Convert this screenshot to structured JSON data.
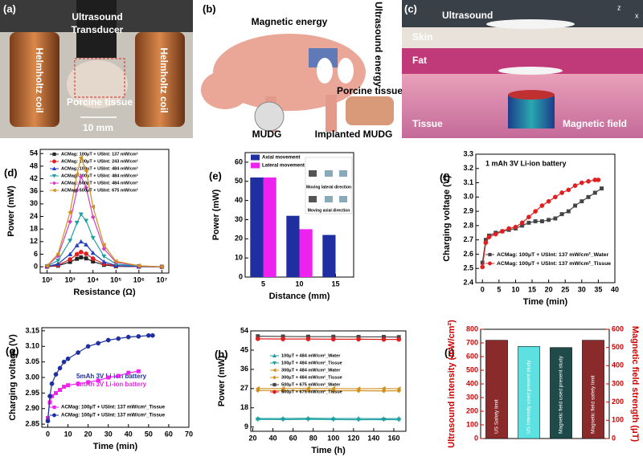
{
  "photos": [
    {
      "panel": "(a)",
      "labels": [
        "Ultrasound",
        "Transducer",
        "Helmholtz coil",
        "Helmholtz coil",
        "Porcine tissue",
        "10 mm"
      ]
    },
    {
      "panel": "(b)",
      "labels": [
        "Magnetic energy",
        "Ultrasound energy",
        "Porcine tissue",
        "MUDG",
        "Implanted MUDG"
      ]
    },
    {
      "panel": "(c)",
      "labels": [
        "Ultrasound",
        "Skin",
        "Fat",
        "Tissue",
        "Magnetic field",
        "z",
        "x"
      ]
    }
  ],
  "chart_data": [
    {
      "type": "line",
      "panel": "(d)",
      "xlabel": "Resistance (Ω)",
      "ylabel": "Power (mW)",
      "xscale": "log",
      "xlim": [
        50,
        20000000
      ],
      "xticks": [
        {
          "value": 100,
          "label": "10²"
        },
        {
          "value": 1000,
          "label": "10³"
        },
        {
          "value": 10000,
          "label": "10⁴"
        },
        {
          "value": 100000,
          "label": "10⁵"
        },
        {
          "value": 1000000,
          "label": "10⁶"
        },
        {
          "value": 10000000,
          "label": "10⁷"
        }
      ],
      "ylim": [
        -3,
        56
      ],
      "yticks": [
        0,
        6,
        12,
        18,
        24,
        30,
        36,
        42,
        48,
        54
      ],
      "legend": "upper right",
      "x": [
        100,
        300,
        1000,
        2000,
        3000,
        5000,
        10000,
        30000,
        100000,
        1000000,
        10000000
      ],
      "series": [
        {
          "name": "ACMag: 100μT + USInt: 137 mW/cm²",
          "color": "#222222",
          "marker": "square",
          "values": [
            0.05,
            0.5,
            2.3,
            3.8,
            4.5,
            4,
            2.5,
            0.9,
            0.2,
            0.05,
            0
          ]
        },
        {
          "name": "ACMag: 100μT + USInt: 243 mW/cm²",
          "color": "#e02020",
          "marker": "circle",
          "values": [
            0.1,
            0.8,
            3.5,
            6,
            7,
            6.2,
            3.9,
            1.4,
            0.4,
            0.1,
            0
          ]
        },
        {
          "name": "ACMag: 100μT + USInt: 484 mW/cm²",
          "color": "#2040c0",
          "marker": "triangle",
          "values": [
            0.1,
            1.4,
            6,
            10.2,
            12,
            10.6,
            6.6,
            2.4,
            0.6,
            0.1,
            0
          ]
        },
        {
          "name": "ACMag: 300μT + USInt: 484 mW/cm²",
          "color": "#20a0a0",
          "marker": "triangle-down",
          "values": [
            0.3,
            3,
            12.5,
            21,
            25,
            22,
            13.8,
            5,
            1.3,
            0.3,
            0
          ]
        },
        {
          "name": "ACMag: 500μT + USInt: 484 mW/cm²",
          "color": "#d040c0",
          "marker": "diamond",
          "values": [
            0.4,
            5.2,
            21.5,
            36.5,
            43,
            37.8,
            23.7,
            8.6,
            2.2,
            0.4,
            0
          ]
        },
        {
          "name": "ACMag: 500μT + USInt: 675 mW/cm²",
          "color": "#d09020",
          "marker": "triangle-left",
          "values": [
            0.5,
            6.2,
            26,
            44,
            52,
            45.8,
            28.6,
            10.4,
            2.6,
            0.5,
            0
          ]
        }
      ]
    },
    {
      "type": "bar",
      "panel": "(e)",
      "xlabel": "Distance (mm)",
      "ylabel": "Power (mW)",
      "categories": [
        "5",
        "10",
        "15"
      ],
      "ylim": [
        0,
        65
      ],
      "yticks": [
        0,
        10,
        20,
        30,
        40,
        50,
        60
      ],
      "legend": "upper left",
      "series": [
        {
          "name": "Axial movement",
          "color": "#1f2fa0",
          "values": [
            52,
            32,
            22
          ]
        },
        {
          "name": "Lateral movement",
          "color": "#ee22ee",
          "values": [
            52,
            25,
            null
          ]
        }
      ],
      "annotations": [
        {
          "text": "Moving lateral direction",
          "color": "#000000"
        },
        {
          "text": "Moving axial direction",
          "color": "#000000"
        }
      ]
    },
    {
      "type": "line",
      "panel": "(f)",
      "xlabel": "Time (min)",
      "ylabel": "Charging voltage (V)",
      "xlim": [
        -2,
        40
      ],
      "xticks": [
        0,
        5,
        10,
        15,
        20,
        25,
        30,
        35,
        40
      ],
      "ylim": [
        2.4,
        3.3
      ],
      "yticks": [
        2.4,
        2.5,
        2.6,
        2.7,
        2.8,
        2.9,
        {
          "value": 3,
          "label": "3.0"
        },
        3.1,
        3.2,
        3.3
      ],
      "legend": "lower right",
      "annotations": [
        {
          "text": "1 mAh 3V Li-ion battery",
          "color": "#000000"
        }
      ],
      "series": [
        {
          "name": "ACMag: 100μT + USInt: 137 mW/cm²_Water",
          "color": "#444444",
          "marker": "square",
          "x": [
            0,
            1,
            2,
            4,
            6,
            8,
            10,
            12,
            14,
            16,
            18,
            20,
            22,
            24,
            26,
            28,
            30,
            32,
            34,
            36
          ],
          "values": [
            2.54,
            2.7,
            2.73,
            2.75,
            2.76,
            2.77,
            2.78,
            2.8,
            2.82,
            2.83,
            2.83,
            2.84,
            2.85,
            2.88,
            2.9,
            2.94,
            2.97,
            3.0,
            3.03,
            3.06
          ]
        },
        {
          "name": "ACMag: 100μT + USInt: 137 mW/cm²_Tissue",
          "color": "#e02020",
          "marker": "circle",
          "x": [
            0,
            1,
            2,
            4,
            6,
            8,
            10,
            12,
            14,
            16,
            18,
            20,
            22,
            24,
            26,
            28,
            30,
            32,
            34,
            35
          ],
          "values": [
            2.51,
            2.68,
            2.72,
            2.74,
            2.76,
            2.78,
            2.79,
            2.82,
            2.86,
            2.9,
            2.94,
            2.97,
            3.0,
            3.03,
            3.05,
            3.08,
            3.1,
            3.11,
            3.12,
            3.12
          ]
        }
      ]
    },
    {
      "type": "line",
      "panel": "(g)",
      "xlabel": "Time (min)",
      "ylabel": "Charging voltage (V)",
      "xlim": [
        -3,
        70
      ],
      "xticks": [
        0,
        10,
        20,
        30,
        40,
        50,
        60,
        70
      ],
      "ylim": [
        2.84,
        3.16
      ],
      "yticks": [
        2.85,
        {
          "value": 2.9,
          "label": "2.90"
        },
        2.95,
        {
          "value": 3,
          "label": "3.00"
        },
        3.05,
        {
          "value": 3.1,
          "label": "3.10"
        },
        3.15
      ],
      "legend": "lower right",
      "annotations": [
        {
          "text": "5mAh 3V Li-ion battery",
          "color": "#1f2fa0"
        },
        {
          "text": "3mAh 3V Li-ion battery",
          "color": "#ee22ee"
        }
      ],
      "series": [
        {
          "name": "ACMag: 100μT + USInt: 137 mW/cm²_Tissue",
          "color": "#ee22ee",
          "marker": "square",
          "x": [
            0,
            1,
            2,
            4,
            6,
            8,
            10,
            15,
            20,
            25,
            30,
            35,
            40,
            45
          ],
          "values": [
            2.87,
            2.92,
            2.94,
            2.95,
            2.96,
            2.97,
            2.975,
            2.98,
            2.985,
            2.99,
            3.0,
            3.005,
            3.015,
            3.02
          ]
        },
        {
          "name": "ACMag: 100μT + USInt: 137 mW/cm²_Tissue",
          "color": "#1f2fa0",
          "marker": "circle",
          "x": [
            0,
            1,
            2,
            4,
            6,
            8,
            10,
            15,
            20,
            25,
            30,
            35,
            40,
            45,
            50,
            52
          ],
          "values": [
            2.86,
            2.94,
            2.98,
            3.01,
            3.03,
            3.05,
            3.06,
            3.08,
            3.1,
            3.11,
            3.12,
            3.125,
            3.13,
            3.132,
            3.135,
            3.135
          ]
        }
      ]
    },
    {
      "type": "line",
      "panel": "(h)",
      "xlabel": "Time (h)",
      "ylabel": "Power (mW)",
      "xlim": [
        18,
        172
      ],
      "xticks": [
        20,
        40,
        60,
        80,
        100,
        120,
        140,
        160
      ],
      "ylim": [
        7,
        54
      ],
      "yticks": [
        9,
        18,
        27,
        36,
        45,
        54
      ],
      "legend": "center",
      "x": [
        25,
        50,
        75,
        100,
        125,
        150,
        165
      ],
      "series": [
        {
          "name": "100μT + 484 mW/cm²_Water",
          "color": "#20a0a0",
          "marker": "triangle",
          "values": [
            13,
            13,
            13.1,
            13,
            13,
            12.9,
            13
          ]
        },
        {
          "name": "100μT + 484 mW/cm²_Tissue",
          "color": "#20a0a0",
          "marker": "triangle-down",
          "values": [
            12.6,
            12.5,
            12.6,
            12.5,
            12.4,
            12.5,
            12.4
          ]
        },
        {
          "name": "300μT + 484 mW/cm²_Water",
          "color": "#d09020",
          "marker": "triangle-left",
          "values": [
            27,
            27,
            27.1,
            27,
            26.9,
            27,
            26.9
          ]
        },
        {
          "name": "300μT + 484 mW/cm²_Tissue",
          "color": "#d09020",
          "marker": "diamond",
          "values": [
            26.1,
            26,
            26.1,
            26,
            26,
            25.9,
            26
          ]
        },
        {
          "name": "500μT + 675 mW/cm²_Water",
          "color": "#444444",
          "marker": "square",
          "values": [
            51.5,
            51.4,
            51.3,
            51.3,
            51.2,
            51.2,
            51.1
          ]
        },
        {
          "name": "500μT + 675 mW/cm²_Tissue",
          "color": "#e02020",
          "marker": "circle",
          "values": [
            50.3,
            50.2,
            50.2,
            50.1,
            50.1,
            50,
            50
          ]
        }
      ]
    },
    {
      "type": "bar-dual",
      "panel": "(i)",
      "ylabel": "Ultrasound intensity (mW/cm²)",
      "y2label": "Magnetic field strength (μT)",
      "axis_color": "#d00000",
      "ylim": [
        0,
        800
      ],
      "yticks": [
        0,
        100,
        200,
        300,
        400,
        500,
        600,
        700,
        800
      ],
      "y2lim": [
        0,
        600
      ],
      "y2ticks": [
        0,
        100,
        200,
        300,
        400,
        500,
        600
      ],
      "categories": [
        "US Safety limit",
        "US Intensity used present study",
        "Magnetic field used present study",
        "Magnetic field safety limit"
      ],
      "values": [
        720,
        675,
        500,
        540
      ],
      "value_axes": [
        "y",
        "y",
        "y2",
        "y2"
      ],
      "colors": [
        "#8b2a2a",
        "#5de0e0",
        "#1f4a4a",
        "#8b2a2a"
      ]
    }
  ]
}
